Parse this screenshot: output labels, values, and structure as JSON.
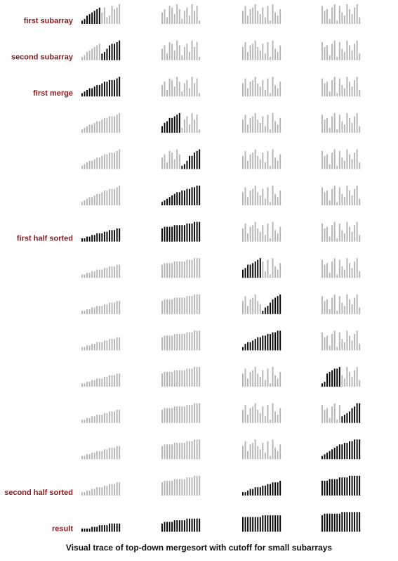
{
  "caption": "Visual trace of top-down mergesort with cutoff for small subarrays",
  "colors": {
    "active": "#000000",
    "inactive": "#b4b4b4",
    "label": "#8b1a1a",
    "caption": "#111111"
  },
  "array_size": 64,
  "cutoff": 8,
  "initial_values": [
    2,
    3,
    5,
    6,
    7,
    8,
    9,
    10,
    7,
    10,
    4,
    5,
    11,
    9,
    10,
    12,
    7,
    9,
    4,
    11,
    10,
    6,
    12,
    9,
    3,
    8,
    10,
    5,
    12,
    8,
    11,
    2,
    8,
    11,
    5,
    9,
    10,
    12,
    8,
    6,
    10,
    4,
    11,
    2,
    12,
    7,
    5,
    9,
    11,
    8,
    9,
    3,
    10,
    12,
    2,
    11,
    7,
    5,
    12,
    9,
    6,
    10,
    12,
    4
  ],
  "rows": [
    {
      "label": "first subarray",
      "active": [
        0,
        7
      ],
      "sorted_prefix": 0
    },
    {
      "label": "second subarray",
      "active": [
        8,
        15
      ],
      "sorted_prefix": 0
    },
    {
      "label": "first merge",
      "active": [
        0,
        15
      ],
      "sorted_prefix": 0
    },
    {
      "label": "",
      "active": [
        16,
        23
      ],
      "sorted_prefix": 16
    },
    {
      "label": "",
      "active": [
        24,
        31
      ],
      "sorted_prefix": 16
    },
    {
      "label": "",
      "active": [
        16,
        31
      ],
      "sorted_prefix": 16
    },
    {
      "label": "first half sorted",
      "active": [
        0,
        31
      ],
      "sorted_prefix": 0
    },
    {
      "label": "",
      "active": [
        32,
        39
      ],
      "sorted_prefix": 32
    },
    {
      "label": "",
      "active": [
        40,
        47
      ],
      "sorted_prefix": 32
    },
    {
      "label": "",
      "active": [
        32,
        47
      ],
      "sorted_prefix": 32
    },
    {
      "label": "",
      "active": [
        48,
        55
      ],
      "sorted_prefix": 32
    },
    {
      "label": "",
      "active": [
        56,
        63
      ],
      "sorted_prefix": 32
    },
    {
      "label": "",
      "active": [
        48,
        63
      ],
      "sorted_prefix": 32
    },
    {
      "label": "second half sorted",
      "active": [
        32,
        63
      ],
      "sorted_prefix": 32
    },
    {
      "label": "result",
      "active": [
        0,
        63
      ],
      "sorted_prefix": 0
    }
  ]
}
